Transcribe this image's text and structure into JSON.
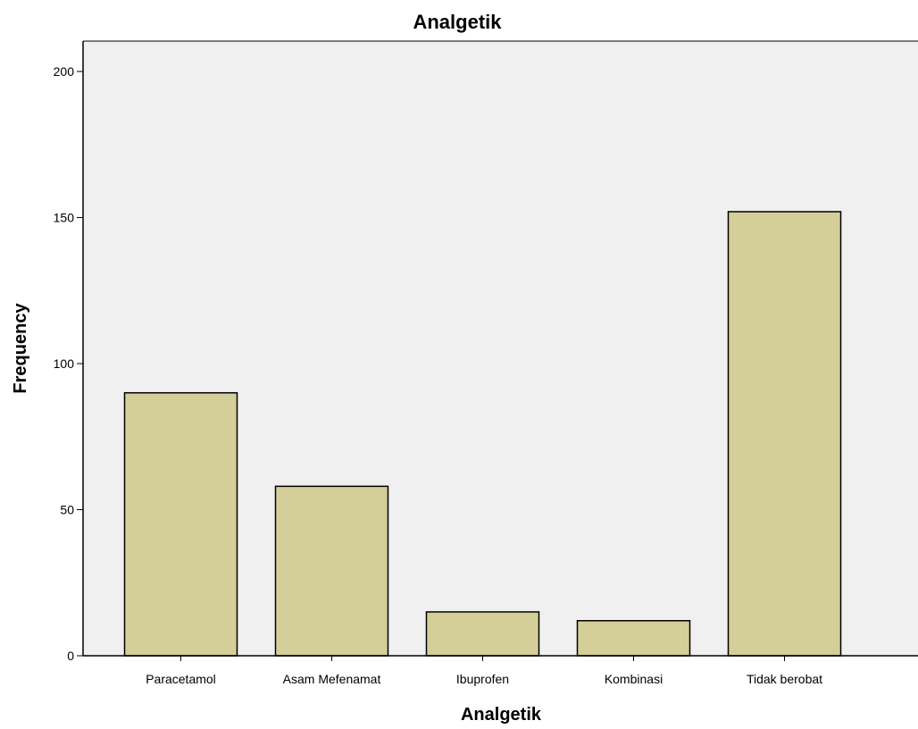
{
  "chart_data": {
    "type": "bar",
    "title": "Analgetik",
    "xlabel": "Analgetik",
    "ylabel": "Frequency",
    "categories": [
      "Paracetamol",
      "Asam Mefenamat",
      "Ibuprofen",
      "Kombinasi",
      "Tidak berobat"
    ],
    "values": [
      90,
      58,
      15,
      12,
      152
    ],
    "ylim": [
      0,
      210
    ],
    "yticks": [
      0,
      50,
      100,
      150,
      200
    ],
    "grid": false,
    "legend": "none",
    "colors": {
      "plot_background": "#f0f0f0",
      "bar_fill": "#d4ce98",
      "bar_stroke": "#000000"
    }
  }
}
